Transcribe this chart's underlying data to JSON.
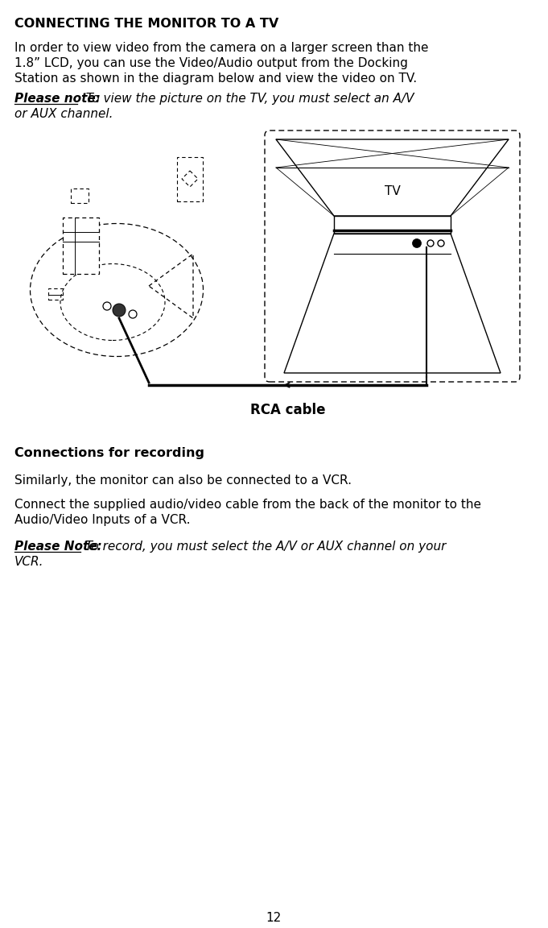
{
  "title": "CONNECTING THE MONITOR TO A TV",
  "para1_line1": "In order to view video from the camera on a larger screen than the",
  "para1_line2": "1.8” LCD, you can use the Video/Audio output from the Docking",
  "para1_line3": "Station as shown in the diagram below and view the video on TV.",
  "note1_bold": "Please note:",
  "note1_rest": "  To view the picture on the TV, you must select an A/V",
  "note1_line2": "or AUX channel.",
  "rca_label": "RCA cable",
  "section2_title": "Connections for recording",
  "para2": "Similarly, the monitor can also be connected to a VCR.",
  "para3_line1": "Connect the supplied audio/video cable from the back of the monitor to the",
  "para3_line2": "Audio/Video Inputs of a VCR.",
  "note2_bold": "Please Note:",
  "note2_rest": " To record, you must select the A/V or AUX channel on your",
  "note2_line2": "VCR.",
  "page_number": "12",
  "bg_color": "#ffffff",
  "text_color": "#000000",
  "tv_label": "TV"
}
